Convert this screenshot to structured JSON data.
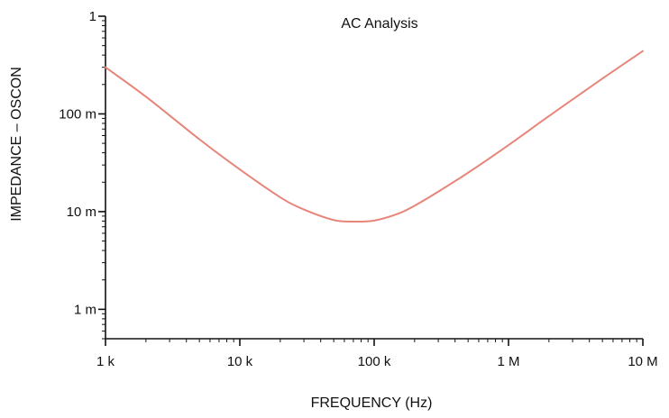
{
  "chart_data": {
    "type": "line",
    "title": "AC Analysis",
    "xlabel": "FREQUENCY (Hz)",
    "ylabel": "IMPEDANCE – OSCON",
    "x_scale": "log",
    "y_scale": "log",
    "xlim": [
      1000,
      10000000
    ],
    "ylim": [
      0.0005,
      1
    ],
    "grid": false,
    "line_color": "#e8857a",
    "axis_color": "#111111",
    "x_ticks": [
      {
        "value": 1000,
        "label": "1 k"
      },
      {
        "value": 10000,
        "label": "10 k"
      },
      {
        "value": 100000,
        "label": "100 k"
      },
      {
        "value": 1000000,
        "label": "1 M"
      },
      {
        "value": 10000000,
        "label": "10 M"
      }
    ],
    "y_ticks": [
      {
        "value": 1,
        "label": "1"
      },
      {
        "value": 0.1,
        "label": "100 m"
      },
      {
        "value": 0.01,
        "label": "10 m"
      },
      {
        "value": 0.001,
        "label": "1 m"
      }
    ],
    "series": [
      {
        "x": [
          1000,
          2000,
          5000,
          10000,
          20000,
          30000,
          50000,
          70000,
          100000,
          150000,
          200000,
          300000,
          500000,
          1000000,
          2000000,
          5000000,
          10000000
        ],
        "y": [
          0.3,
          0.15,
          0.055,
          0.027,
          0.014,
          0.0105,
          0.0082,
          0.0079,
          0.0081,
          0.0095,
          0.0115,
          0.016,
          0.025,
          0.048,
          0.095,
          0.23,
          0.44
        ]
      }
    ]
  }
}
